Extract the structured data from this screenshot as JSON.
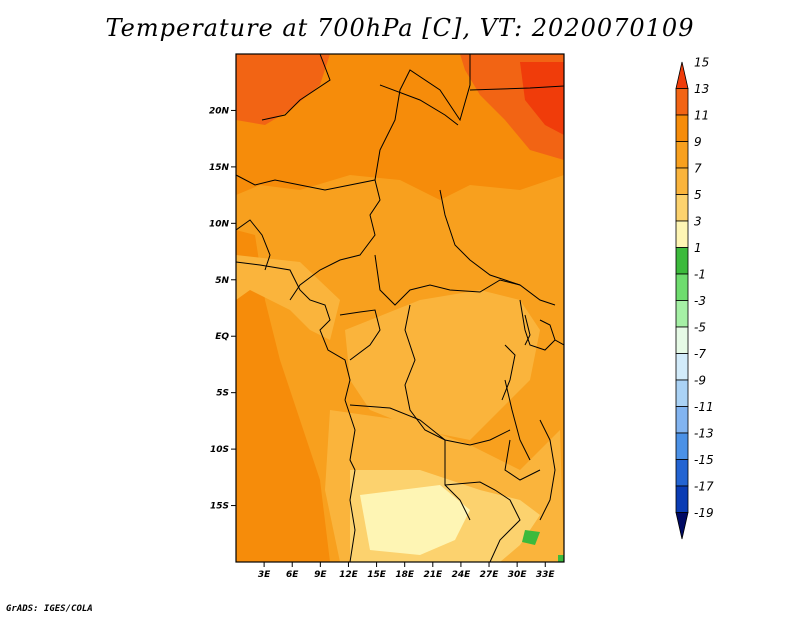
{
  "title": "Temperature at 700hPa [C], VT: 2020070109",
  "footer": "GrADS: IGES/COLA",
  "map": {
    "lat_ticks": [
      {
        "label": "20N",
        "lat": 20
      },
      {
        "label": "15N",
        "lat": 15
      },
      {
        "label": "10N",
        "lat": 10
      },
      {
        "label": "5N",
        "lat": 5
      },
      {
        "label": "EQ",
        "lat": 0
      },
      {
        "label": "5S",
        "lat": -5
      },
      {
        "label": "10S",
        "lat": -10
      },
      {
        "label": "15S",
        "lat": -15
      }
    ],
    "lon_ticks": [
      {
        "label": "3E",
        "lon": 3
      },
      {
        "label": "6E",
        "lon": 6
      },
      {
        "label": "9E",
        "lon": 9
      },
      {
        "label": "12E",
        "lon": 12
      },
      {
        "label": "15E",
        "lon": 15
      },
      {
        "label": "18E",
        "lon": 18
      },
      {
        "label": "21E",
        "lon": 21
      },
      {
        "label": "24E",
        "lon": 24
      },
      {
        "label": "27E",
        "lon": 27
      },
      {
        "label": "30E",
        "lon": 30
      },
      {
        "label": "33E",
        "lon": 33
      }
    ],
    "lon_range": [
      0,
      35
    ],
    "lat_range": [
      -20,
      25
    ]
  },
  "colorbar": {
    "levels": [
      "15",
      "13",
      "11",
      "9",
      "7",
      "5",
      "3",
      "1",
      "-1",
      "-3",
      "-5",
      "-7",
      "-9",
      "-11",
      "-13",
      "-15",
      "-17",
      "-19"
    ],
    "colors": [
      "#f03c0a",
      "#f26414",
      "#f68c0a",
      "#f8a01e",
      "#fab43c",
      "#fcd26e",
      "#fef5b4",
      "#3cba3c",
      "#6edc6e",
      "#a5f0a5",
      "#e6fae6",
      "#d2ebfa",
      "#aad2f5",
      "#82b4f0",
      "#4b91e6",
      "#2364d2",
      "#0a3cb4",
      "#000a64"
    ]
  }
}
